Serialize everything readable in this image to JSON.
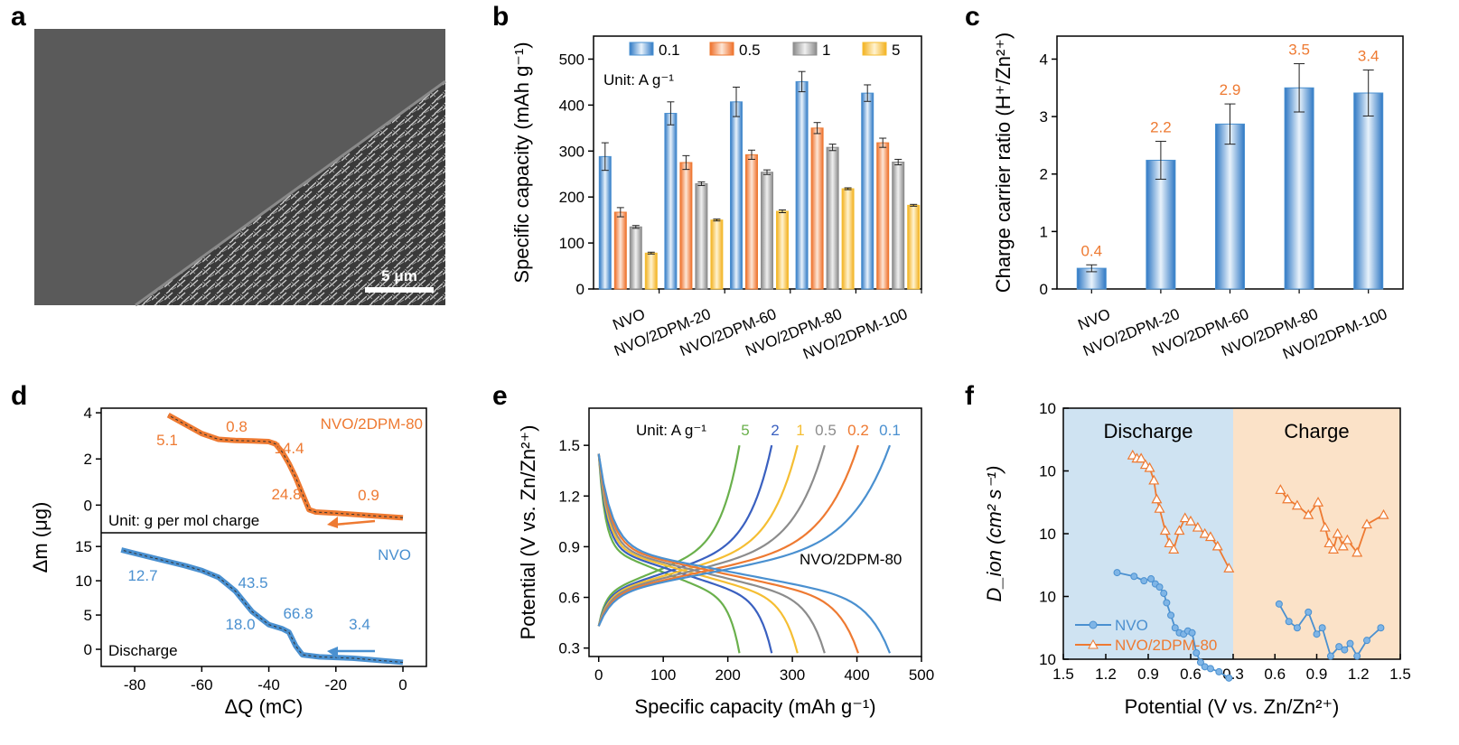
{
  "panel_labels": [
    "a",
    "b",
    "c",
    "d",
    "e",
    "f"
  ],
  "colors": {
    "blue": "#4a90d0",
    "blue_light": "#cfe3f5",
    "orange": "#ee7a32",
    "orange_light": "#fbd9c3",
    "gray": "#8c8c8c",
    "gray_light": "#e4e4e4",
    "yellow": "#f5be33",
    "yellow_light": "#fcebbd",
    "green": "#6ab04c",
    "darkblue": "#3a60c0",
    "discharge_bg": "#cfe3f2",
    "charge_bg": "#fbe2c8"
  },
  "panel_a": {
    "type": "sem-image",
    "scale_bar_label": "5 μm"
  },
  "chart_data": [
    {
      "panel": "b",
      "type": "bar",
      "ylabel": "Specific capacity (mAh g⁻¹)",
      "ylim": [
        0,
        550
      ],
      "yticks": [
        0,
        100,
        200,
        300,
        400,
        500
      ],
      "categories": [
        "NVO",
        "NVO/2DPM-20",
        "NVO/2DPM-60",
        "NVO/2DPM-80",
        "NVO/2DPM-100"
      ],
      "unit_note": "Unit: A g⁻¹",
      "legend_position": "top",
      "series": [
        {
          "name": "0.1",
          "color": "blue",
          "values": [
            288,
            382,
            407,
            451,
            426
          ],
          "errors": [
            30,
            25,
            32,
            22,
            18
          ]
        },
        {
          "name": "0.5",
          "color": "orange",
          "values": [
            167,
            275,
            292,
            350,
            318
          ],
          "errors": [
            10,
            15,
            10,
            12,
            10
          ]
        },
        {
          "name": "1",
          "color": "gray",
          "values": [
            135,
            229,
            254,
            308,
            276
          ],
          "errors": [
            3,
            4,
            5,
            7,
            6
          ]
        },
        {
          "name": "5",
          "color": "yellow",
          "values": [
            78,
            150,
            169,
            218,
            182
          ],
          "errors": [
            2,
            2,
            3,
            2,
            2
          ]
        }
      ]
    },
    {
      "panel": "c",
      "type": "bar",
      "ylabel": "Charge carrier ratio (H⁺/Zn²⁺)",
      "ylim": [
        0,
        4.4
      ],
      "yticks": [
        0,
        1,
        2,
        3,
        4
      ],
      "categories": [
        "NVO",
        "NVO/2DPM-20",
        "NVO/2DPM-60",
        "NVO/2DPM-80",
        "NVO/2DPM-100"
      ],
      "values": [
        0.36,
        2.24,
        2.87,
        3.5,
        3.41
      ],
      "errors": [
        0.06,
        0.33,
        0.35,
        0.42,
        0.4
      ],
      "data_labels": [
        "0.4",
        "2.2",
        "2.9",
        "3.5",
        "3.4"
      ]
    },
    {
      "panel": "d",
      "type": "line",
      "xlabel": "ΔQ (mC)",
      "ylabel": "Δm (μg)",
      "xlim": [
        -90,
        7
      ],
      "xticks": [
        -80,
        -60,
        -40,
        -20,
        0
      ],
      "subplots": [
        {
          "name": "NVO/2DPM-80",
          "color": "orange",
          "ylim": [
            -1.2,
            4.2
          ],
          "yticks": [
            0,
            2,
            4
          ],
          "note": "Unit: g per mol charge",
          "x": [
            0,
            -10,
            -20,
            -26,
            -28,
            -30,
            -32,
            -34,
            -36,
            -38,
            -40,
            -45,
            -50,
            -55,
            -60,
            -65,
            -70
          ],
          "y": [
            -0.55,
            -0.45,
            -0.35,
            -0.3,
            -0.2,
            0.5,
            1.2,
            1.8,
            2.3,
            2.65,
            2.75,
            2.78,
            2.8,
            2.85,
            3.1,
            3.5,
            3.9
          ],
          "slope_labels": [
            "5.1",
            "0.8",
            "14.4",
            "24.8",
            "0.9"
          ]
        },
        {
          "name": "NVO",
          "color": "blue",
          "ylim": [
            -2.5,
            17
          ],
          "yticks": [
            0,
            5,
            10,
            15
          ],
          "note": "Discharge",
          "x": [
            0,
            -5,
            -10,
            -15,
            -20,
            -25,
            -30,
            -32,
            -34,
            -36,
            -38,
            -40,
            -45,
            -50,
            -55,
            -60,
            -65,
            -70,
            -75,
            -80,
            -84
          ],
          "y": [
            -1.9,
            -1.7,
            -1.5,
            -1.3,
            -1.2,
            -1.1,
            -0.8,
            0.5,
            2.5,
            3.0,
            3.3,
            3.6,
            5.5,
            8.5,
            10.5,
            11.5,
            12.2,
            12.8,
            13.4,
            14.0,
            14.5
          ],
          "slope_labels": [
            "12.7",
            "43.5",
            "18.0",
            "66.8",
            "3.4"
          ]
        }
      ]
    },
    {
      "panel": "e",
      "type": "line",
      "xlabel": "Specific capacity (mAh g⁻¹)",
      "ylabel": "Potential (V vs. Zn/Zn²⁺)",
      "xlim": [
        -15,
        500
      ],
      "ylim": [
        0.25,
        1.72
      ],
      "xticks": [
        0,
        100,
        200,
        300,
        400,
        500
      ],
      "yticks": [
        0.3,
        0.6,
        0.9,
        1.2,
        1.5
      ],
      "unit_note": "Unit: A g⁻¹",
      "sample_label": "NVO/2DPM-80",
      "series": [
        {
          "name": "5",
          "color": "green",
          "capacity": 218
        },
        {
          "name": "2",
          "color": "darkblue",
          "capacity": 268
        },
        {
          "name": "1",
          "color": "yellow",
          "capacity": 308
        },
        {
          "name": "0.5",
          "color": "gray",
          "capacity": 350
        },
        {
          "name": "0.2",
          "color": "orange",
          "capacity": 402
        },
        {
          "name": "0.1",
          "color": "blue",
          "capacity": 451
        }
      ]
    },
    {
      "panel": "f",
      "type": "scatter",
      "xlabel": "Potential (V vs. Zn/Zn²⁺)",
      "ylabel": "D_ion (cm² s⁻¹)",
      "yscale": "log",
      "ylim_exp": [
        -12,
        -8
      ],
      "discharge_xticks": [
        "1.5",
        "1.2",
        "0.9",
        "0.6",
        "0.3"
      ],
      "charge_xticks": [
        "0.3",
        "0.6",
        "0.9",
        "1.2",
        "1.5"
      ],
      "regions": [
        "Discharge",
        "Charge"
      ],
      "legend_position": "bottom-left",
      "series": [
        {
          "name": "NVO",
          "color": "blue",
          "marker": "circle",
          "discharge": [
            [
              1.12,
              -10.62
            ],
            [
              1.0,
              -10.68
            ],
            [
              0.93,
              -10.75
            ],
            [
              0.88,
              -10.72
            ],
            [
              0.85,
              -10.8
            ],
            [
              0.82,
              -10.85
            ],
            [
              0.79,
              -10.95
            ],
            [
              0.77,
              -11.1
            ],
            [
              0.74,
              -11.3
            ],
            [
              0.71,
              -11.5
            ],
            [
              0.68,
              -11.58
            ],
            [
              0.65,
              -11.6
            ],
            [
              0.62,
              -11.55
            ],
            [
              0.59,
              -11.58
            ],
            [
              0.56,
              -11.9
            ],
            [
              0.53,
              -12.05
            ],
            [
              0.5,
              -12.12
            ],
            [
              0.46,
              -12.15
            ],
            [
              0.4,
              -12.2
            ],
            [
              0.33,
              -12.3
            ]
          ],
          "charge": [
            [
              0.63,
              -11.12
            ],
            [
              0.7,
              -11.4
            ],
            [
              0.76,
              -11.5
            ],
            [
              0.84,
              -11.25
            ],
            [
              0.9,
              -11.6
            ],
            [
              0.94,
              -11.5
            ],
            [
              1.0,
              -11.95
            ],
            [
              1.06,
              -11.8
            ],
            [
              1.1,
              -11.85
            ],
            [
              1.14,
              -11.75
            ],
            [
              1.19,
              -11.95
            ],
            [
              1.26,
              -11.7
            ],
            [
              1.36,
              -11.5
            ]
          ]
        },
        {
          "name": "NVO/2DPM-80",
          "color": "orange",
          "marker": "triangle",
          "discharge": [
            [
              1.01,
              -8.75
            ],
            [
              0.98,
              -8.8
            ],
            [
              0.95,
              -8.8
            ],
            [
              0.92,
              -8.9
            ],
            [
              0.89,
              -8.95
            ],
            [
              0.86,
              -9.15
            ],
            [
              0.84,
              -9.45
            ],
            [
              0.82,
              -9.6
            ],
            [
              0.78,
              -9.95
            ],
            [
              0.75,
              -10.15
            ],
            [
              0.72,
              -10.25
            ],
            [
              0.68,
              -9.95
            ],
            [
              0.64,
              -9.75
            ],
            [
              0.6,
              -9.8
            ],
            [
              0.55,
              -9.9
            ],
            [
              0.5,
              -10.0
            ],
            [
              0.46,
              -10.05
            ],
            [
              0.41,
              -10.2
            ],
            [
              0.33,
              -10.55
            ]
          ],
          "charge": [
            [
              0.64,
              -9.3
            ],
            [
              0.69,
              -9.45
            ],
            [
              0.76,
              -9.55
            ],
            [
              0.84,
              -9.7
            ],
            [
              0.91,
              -9.5
            ],
            [
              0.96,
              -9.9
            ],
            [
              0.99,
              -10.15
            ],
            [
              1.02,
              -10.25
            ],
            [
              1.05,
              -10.0
            ],
            [
              1.09,
              -10.2
            ],
            [
              1.12,
              -10.1
            ],
            [
              1.19,
              -10.3
            ],
            [
              1.26,
              -9.85
            ],
            [
              1.38,
              -9.7
            ]
          ]
        }
      ]
    }
  ]
}
